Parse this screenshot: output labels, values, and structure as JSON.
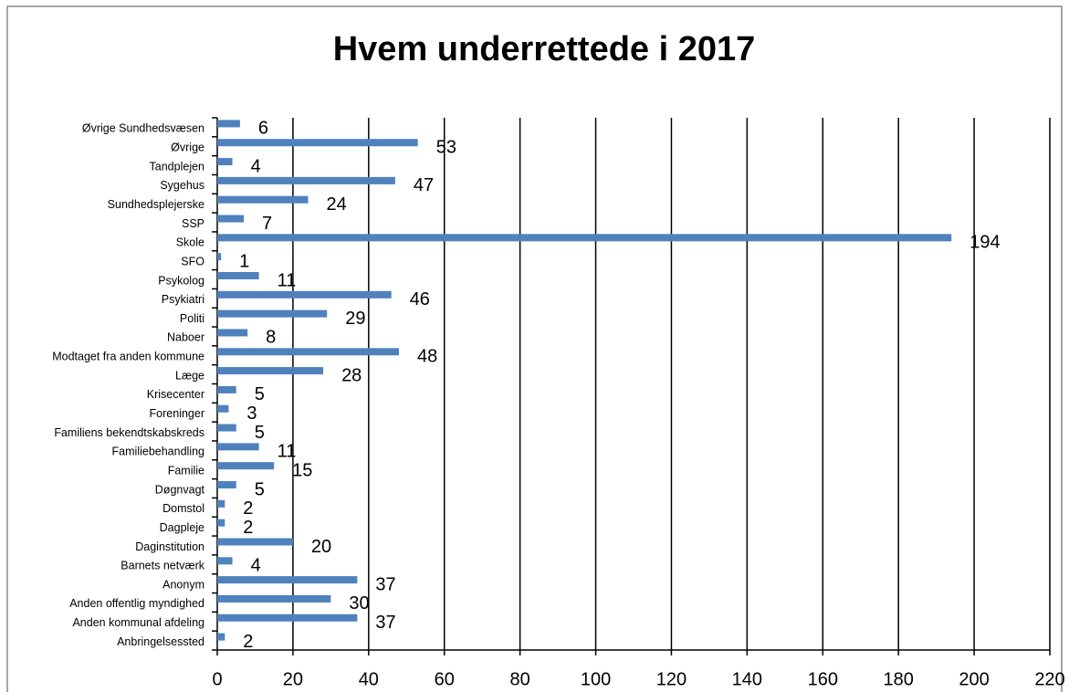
{
  "chart_data": {
    "type": "hbar",
    "title": "Hvem underrettede i 2017",
    "categories": [
      "Anbringelsessted",
      "Anden kommunal afdeling",
      "Anden offentlig myndighed",
      "Anonym",
      "Barnets netværk",
      "Daginstitution",
      "Dagpleje",
      "Domstol",
      "Døgnvagt",
      "Familie",
      "Familiebehandling",
      "Familiens bekendtskabskreds",
      "Foreninger",
      "Krisecenter",
      "Læge",
      "Modtaget fra anden kommune",
      "Naboer",
      "Politi",
      "Psykiatri",
      "Psykolog",
      "SFO",
      "Skole",
      "SSP",
      "Sundhedsplejerske",
      "Sygehus",
      "Tandplejen",
      "Øvrige",
      "Øvrige Sundhedsvæsen"
    ],
    "values": [
      2,
      37,
      30,
      37,
      4,
      20,
      2,
      2,
      5,
      15,
      11,
      5,
      3,
      5,
      28,
      48,
      8,
      29,
      46,
      11,
      1,
      194,
      7,
      24,
      47,
      4,
      53,
      6
    ],
    "color": "#4f81bd",
    "xlim": [
      0,
      220
    ],
    "xticks": [
      0,
      20,
      40,
      60,
      80,
      100,
      120,
      140,
      160,
      180,
      200,
      220
    ],
    "grid": true
  }
}
